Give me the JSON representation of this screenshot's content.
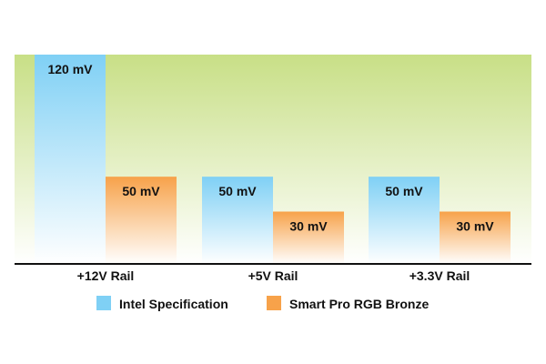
{
  "chart_data": {
    "type": "bar",
    "categories": [
      "+12V Rail",
      "+5V Rail",
      "+3.3V Rail"
    ],
    "series": [
      {
        "name": "Intel Specification",
        "values": [
          120,
          50,
          50
        ],
        "labels": [
          "120 mV",
          "50 mV",
          "50 mV"
        ]
      },
      {
        "name": "Smart Pro RGB Bronze",
        "values": [
          50,
          30,
          30
        ],
        "labels": [
          "50 mV",
          "30 mV",
          "30 mV"
        ]
      }
    ],
    "unit": "mV",
    "ylim": [
      0,
      120
    ],
    "grid": false,
    "legend": "bottom-center",
    "colors": {
      "series": [
        "#7fd0f5",
        "#f7a24a"
      ],
      "background_top": "#c8df86",
      "background_bottom": "#ffffff",
      "axis": "#111111"
    }
  }
}
